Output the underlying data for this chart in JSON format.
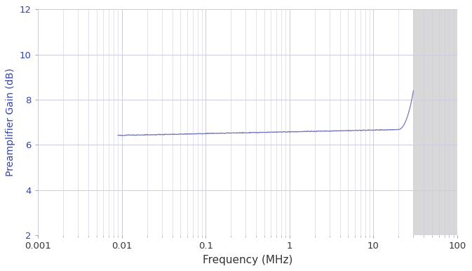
{
  "title": "",
  "xlabel": "Frequency (MHz)",
  "ylabel": "Preamplifier Gain (dB)",
  "xlim": [
    0.001,
    100
  ],
  "ylim": [
    2,
    12
  ],
  "yticks": [
    2,
    4,
    6,
    8,
    10,
    12
  ],
  "line_color": "#7777bb",
  "label_color": "#3344aa",
  "tick_label_color": "#3344aa",
  "xlabel_color": "#333333",
  "bg_color": "#ffffff",
  "plot_bg_color": "#ffffff",
  "shaded_region_color": "#d8d8d8",
  "shaded_xmin": 30,
  "shaded_xmax": 100,
  "grid_color": "#ccccdd",
  "freq_start": 0.009,
  "freq_end": 30.0,
  "gain_flat_start": 6.42,
  "gain_flat_end": 6.68,
  "gain_end": 8.4,
  "rise_start_freq": 20.0,
  "figsize": [
    6.73,
    3.86
  ],
  "dpi": 100
}
